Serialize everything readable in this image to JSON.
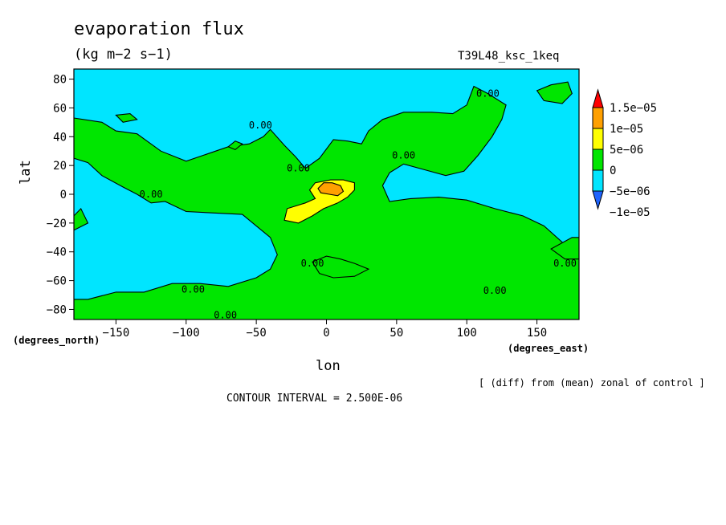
{
  "chart_data": {
    "type": "heatmap",
    "title": "evaporation flux",
    "units": "(kg m−2 s−1)",
    "run_id": "T39L48_ksc_1keq",
    "xlabel": "lon",
    "ylabel": "lat",
    "x_unit_label": "(degrees_east)",
    "y_unit_label": "(degrees_north)",
    "xlim": [
      -180,
      180
    ],
    "ylim": [
      -87,
      87
    ],
    "x_ticks": [
      -150,
      -100,
      -50,
      0,
      50,
      100,
      150
    ],
    "x_tick_labels": [
      "−150",
      "−100",
      "−50",
      "0",
      "50",
      "100",
      "150"
    ],
    "y_ticks": [
      -80,
      -60,
      -40,
      -20,
      0,
      20,
      40,
      60,
      80
    ],
    "y_tick_labels": [
      "−80",
      "−60",
      "−40",
      "−20",
      "0",
      "20",
      "40",
      "60",
      "80"
    ],
    "note": "[ (diff) from (mean) zonal of control ]",
    "contour_interval": "CONTOUR INTERVAL = 2.500E-06",
    "contour_labels": [
      {
        "text": "0.00",
        "lon": -125,
        "lat": 0
      },
      {
        "text": "0.00",
        "lon": -47,
        "lat": 48
      },
      {
        "text": "0.00",
        "lon": -20,
        "lat": 18
      },
      {
        "text": "0.00",
        "lon": 55,
        "lat": 27
      },
      {
        "text": "0.00",
        "lon": 115,
        "lat": 70
      },
      {
        "text": "0.00",
        "lon": -95,
        "lat": -66
      },
      {
        "text": "0.00",
        "lon": -10,
        "lat": -48
      },
      {
        "text": "0.00",
        "lon": -72,
        "lat": -84
      },
      {
        "text": "0.00",
        "lon": 120,
        "lat": -67
      },
      {
        "text": "0.00",
        "lon": 170,
        "lat": -48
      }
    ],
    "legend": {
      "placement": "right",
      "colors": [
        "#1e64ff",
        "#00e5ff",
        "#00e600",
        "#ffff00",
        "#ffa000",
        "#ff0000"
      ],
      "labels": [
        "−1e−05",
        "−5e−06",
        "0",
        "5e−06",
        "1e−05",
        "1.5e−05"
      ]
    },
    "regions": [
      {
        "level": "0 to 5e-06",
        "color": "#00e600",
        "polygons": [
          [
            [
              -180,
              53
            ],
            [
              -160,
              50
            ],
            [
              -150,
              44
            ],
            [
              -135,
              42
            ],
            [
              -118,
              30
            ],
            [
              -100,
              23
            ],
            [
              -85,
              28
            ],
            [
              -70,
              33
            ],
            [
              -55,
              35
            ],
            [
              -45,
              40
            ],
            [
              -40,
              45
            ],
            [
              -30,
              34
            ],
            [
              -22,
              26
            ],
            [
              -15,
              18
            ],
            [
              -5,
              25
            ],
            [
              5,
              38
            ],
            [
              15,
              37
            ],
            [
              25,
              35
            ],
            [
              30,
              44
            ],
            [
              40,
              52
            ],
            [
              55,
              57
            ],
            [
              75,
              57
            ],
            [
              90,
              56
            ],
            [
              100,
              62
            ],
            [
              105,
              75
            ],
            [
              115,
              70
            ],
            [
              128,
              62
            ],
            [
              125,
              52
            ],
            [
              118,
              40
            ],
            [
              108,
              27
            ],
            [
              98,
              16
            ],
            [
              85,
              13
            ],
            [
              70,
              17
            ],
            [
              55,
              21
            ],
            [
              45,
              15
            ],
            [
              40,
              6
            ],
            [
              45,
              -5
            ],
            [
              60,
              -3
            ],
            [
              80,
              -2
            ],
            [
              100,
              -4
            ],
            [
              120,
              -10
            ],
            [
              140,
              -15
            ],
            [
              155,
              -22
            ],
            [
              170,
              -35
            ],
            [
              180,
              -38
            ],
            [
              180,
              -87
            ],
            [
              -180,
              -87
            ],
            [
              -180,
              -73
            ],
            [
              -170,
              -73
            ],
            [
              -150,
              -68
            ],
            [
              -130,
              -68
            ],
            [
              -110,
              -62
            ],
            [
              -90,
              -62
            ],
            [
              -70,
              -64
            ],
            [
              -50,
              -58
            ],
            [
              -40,
              -52
            ],
            [
              -35,
              -42
            ],
            [
              -40,
              -30
            ],
            [
              -50,
              -22
            ],
            [
              -60,
              -14
            ],
            [
              -80,
              -13
            ],
            [
              -100,
              -12
            ],
            [
              -115,
              -5
            ],
            [
              -125,
              -6
            ],
            [
              -135,
              0
            ],
            [
              -145,
              5
            ],
            [
              -160,
              13
            ],
            [
              -170,
              22
            ],
            [
              -180,
              25
            ]
          ],
          [
            [
              -10,
              -47
            ],
            [
              0,
              -43
            ],
            [
              10,
              -45
            ],
            [
              20,
              -48
            ],
            [
              30,
              -52
            ],
            [
              20,
              -57
            ],
            [
              5,
              -58
            ],
            [
              -5,
              -55
            ]
          ],
          [
            [
              160,
              -38
            ],
            [
              175,
              -30
            ],
            [
              180,
              -30
            ],
            [
              180,
              -45
            ],
            [
              170,
              -45
            ]
          ],
          [
            [
              -180,
              -15
            ],
            [
              -175,
              -10
            ],
            [
              -170,
              -20
            ],
            [
              -180,
              -25
            ]
          ],
          [
            [
              -70,
              33
            ],
            [
              -65,
              37
            ],
            [
              -60,
              35
            ],
            [
              -65,
              31
            ]
          ],
          [
            [
              150,
              72
            ],
            [
              160,
              76
            ],
            [
              172,
              78
            ],
            [
              175,
              70
            ],
            [
              168,
              63
            ],
            [
              155,
              65
            ]
          ],
          [
            [
              -150,
              55
            ],
            [
              -140,
              56
            ],
            [
              -135,
              52
            ],
            [
              -145,
              50
            ]
          ]
        ]
      },
      {
        "level": "5e-06 to 1e-05",
        "color": "#ffff00",
        "polygons": [
          [
            [
              -30,
              -18
            ],
            [
              -20,
              -20
            ],
            [
              -10,
              -15
            ],
            [
              -2,
              -10
            ],
            [
              8,
              -6
            ],
            [
              15,
              -2
            ],
            [
              20,
              3
            ],
            [
              20,
              8
            ],
            [
              12,
              10
            ],
            [
              3,
              10
            ],
            [
              -8,
              8
            ],
            [
              -12,
              3
            ],
            [
              -8,
              -3
            ],
            [
              -15,
              -6
            ],
            [
              -28,
              -10
            ]
          ]
        ]
      },
      {
        "level": "1e-05 to 1.5e-05",
        "color": "#ffa000",
        "polygons": [
          [
            [
              -6,
              4
            ],
            [
              -2,
              8
            ],
            [
              4,
              8
            ],
            [
              10,
              6
            ],
            [
              12,
              2
            ],
            [
              8,
              -1
            ],
            [
              2,
              0
            ],
            [
              -4,
              1
            ]
          ]
        ]
      }
    ]
  }
}
